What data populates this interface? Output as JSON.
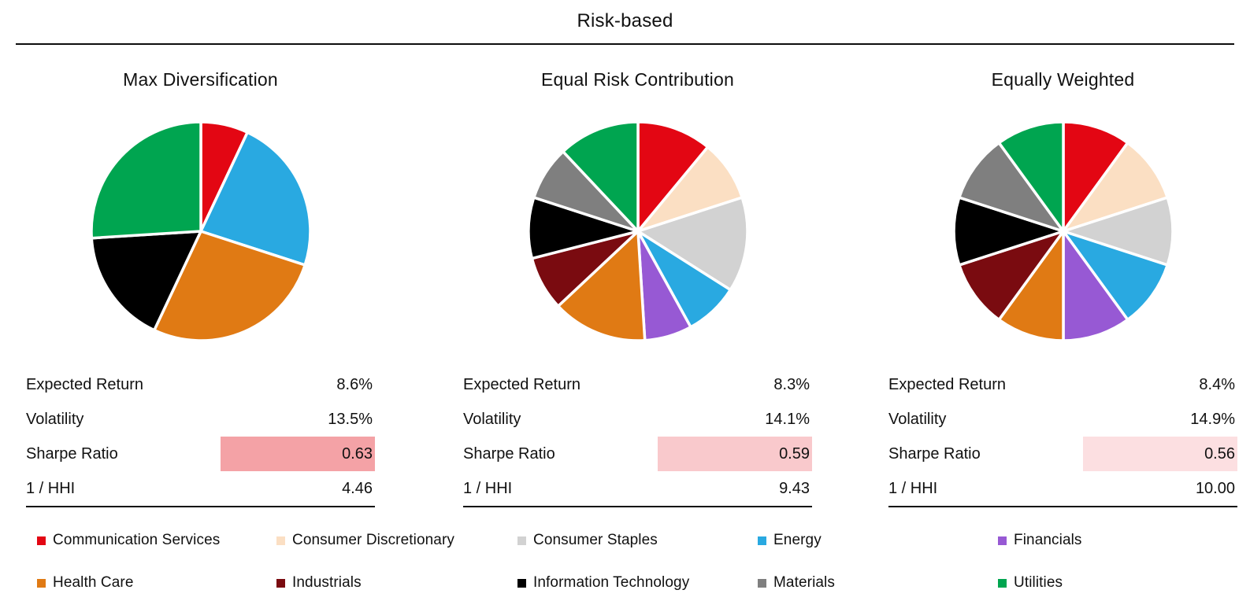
{
  "header": {
    "title": "Risk-based"
  },
  "palette": {
    "Communication Services": "#e30613",
    "Consumer Discretionary": "#fbdfc3",
    "Consumer Staples": "#d2d2d2",
    "Energy": "#29a9e1",
    "Financials": "#9759d4",
    "Health Care": "#e07a14",
    "Industrials": "#7a0b10",
    "Information Technology": "#000000",
    "Materials": "#7f7f7f",
    "Utilities": "#00a550"
  },
  "chart_data": [
    {
      "type": "pie",
      "title": "Max Diversification",
      "labels": [
        "Communication Services",
        "Energy",
        "Health Care",
        "Information Technology",
        "Utilities"
      ],
      "values": [
        7,
        23,
        27,
        17,
        26
      ],
      "value_units": "portfolio weight %",
      "metrics": [
        {
          "label": "Expected Return",
          "value": "8.6%"
        },
        {
          "label": "Volatility",
          "value": "13.5%"
        },
        {
          "label": "Sharpe Ratio",
          "value": "0.63",
          "highlight": "#f4a2a6"
        },
        {
          "label": "1 / HHI",
          "value": "4.46"
        }
      ]
    },
    {
      "type": "pie",
      "title": "Equal Risk Contribution",
      "labels": [
        "Communication Services",
        "Consumer Discretionary",
        "Consumer Staples",
        "Energy",
        "Financials",
        "Health Care",
        "Industrials",
        "Information Technology",
        "Materials",
        "Utilities"
      ],
      "values": [
        11,
        9,
        14,
        8,
        7,
        14,
        8,
        9,
        8,
        12
      ],
      "value_units": "portfolio weight %",
      "metrics": [
        {
          "label": "Expected Return",
          "value": "8.3%"
        },
        {
          "label": "Volatility",
          "value": "14.1%"
        },
        {
          "label": "Sharpe Ratio",
          "value": "0.59",
          "highlight": "#f9c9cc"
        },
        {
          "label": "1 / HHI",
          "value": "9.43"
        }
      ]
    },
    {
      "type": "pie",
      "title": "Equally Weighted",
      "labels": [
        "Communication Services",
        "Consumer Discretionary",
        "Consumer Staples",
        "Energy",
        "Financials",
        "Health Care",
        "Industrials",
        "Information Technology",
        "Materials",
        "Utilities"
      ],
      "values": [
        10,
        10,
        10,
        10,
        10,
        10,
        10,
        10,
        10,
        10
      ],
      "value_units": "portfolio weight %",
      "metrics": [
        {
          "label": "Expected Return",
          "value": "8.4%"
        },
        {
          "label": "Volatility",
          "value": "14.9%"
        },
        {
          "label": "Sharpe Ratio",
          "value": "0.56",
          "highlight": "#fcdfe1"
        },
        {
          "label": "1 / HHI",
          "value": "10.00"
        }
      ]
    }
  ],
  "legend": {
    "rows": [
      [
        "Communication Services",
        "Consumer Discretionary",
        "Consumer Staples",
        "Energy",
        "Financials"
      ],
      [
        "Health Care",
        "Industrials",
        "Information Technology",
        "Materials",
        "Utilities"
      ]
    ]
  }
}
